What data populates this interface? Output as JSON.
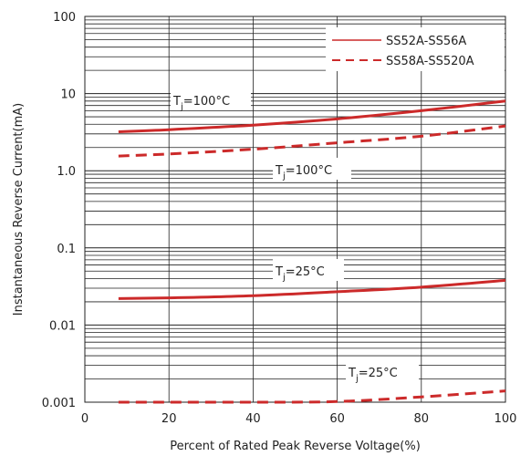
{
  "chart_data": {
    "type": "line",
    "xlabel": "Percent of Rated Peak Reverse Voltage(%)",
    "ylabel": "Instantaneous Reverse Current(mA)",
    "xlim": [
      0,
      100
    ],
    "ylim": [
      0.001,
      100
    ],
    "yscale": "log",
    "grid": true,
    "legend_position": "top-right",
    "x_ticks": [
      "0",
      "20",
      "40",
      "60",
      "80",
      "100"
    ],
    "y_ticks": [
      "0.001",
      "0.01",
      "0.1",
      "1.0",
      "10",
      "100"
    ],
    "series": [
      {
        "name": "SS52A-SS56A",
        "style": "solid",
        "color": "#cc2a2a",
        "curves": [
          {
            "annotation": "Tj=100°C",
            "x": [
              8,
              20,
              40,
              60,
              80,
              100
            ],
            "y": [
              3.2,
              3.4,
              3.9,
              4.7,
              6.0,
              8.0
            ]
          },
          {
            "annotation": "Tj=25°C",
            "x": [
              8,
              20,
              40,
              60,
              80,
              100
            ],
            "y": [
              0.022,
              0.0225,
              0.024,
              0.027,
              0.031,
              0.038
            ]
          }
        ]
      },
      {
        "name": "SS58A-SS520A",
        "style": "dashed",
        "color": "#cc2a2a",
        "curves": [
          {
            "annotation": "Tj=100°C",
            "x": [
              8,
              20,
              40,
              60,
              80,
              100
            ],
            "y": [
              1.55,
              1.65,
              1.9,
              2.3,
              2.8,
              3.8
            ]
          },
          {
            "annotation": "Tj=25°C",
            "x": [
              8,
              20,
              40,
              60,
              80,
              100
            ],
            "y": [
              0.001,
              0.001,
              0.001,
              0.00102,
              0.00117,
              0.0014
            ]
          }
        ]
      }
    ],
    "annotations": [
      {
        "text_main": "T",
        "text_sub": "j",
        "text_rest": "=100°C"
      },
      {
        "text_main": "T",
        "text_sub": "j",
        "text_rest": "=100°C"
      },
      {
        "text_main": "T",
        "text_sub": "j",
        "text_rest": "=25°C"
      },
      {
        "text_main": "T",
        "text_sub": "j",
        "text_rest": "=25°C"
      }
    ]
  }
}
